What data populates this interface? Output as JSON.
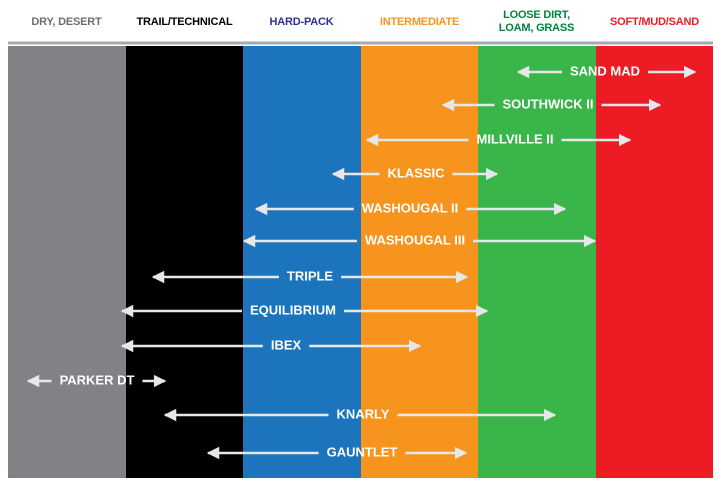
{
  "columns": [
    "DRY, DESERT",
    "TRAIL/TECHNICAL",
    "HARD-PACK",
    "INTERMEDIATE",
    "LOOSE DIRT, LOAM, GRASS",
    "SOFT/MUD/SAND"
  ],
  "products": [
    "SAND MAD",
    "SOUTHWICK II",
    "MILLVILLE II",
    "KLASSIC",
    "WASHOUGAL II",
    "WASHOUGAL III",
    "TRIPLE",
    "EQUILIBRIUM",
    "IBEX",
    "PARKER DT",
    "KNARLY",
    "GAUNTLET"
  ]
}
